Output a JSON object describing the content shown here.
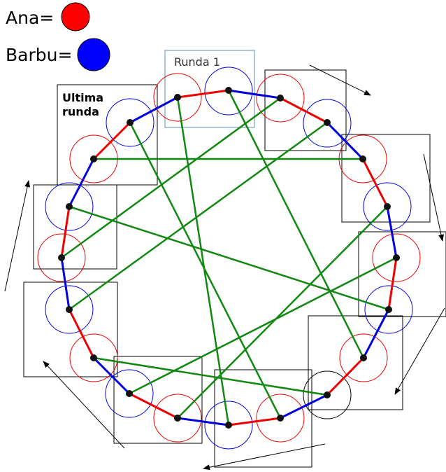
{
  "legend": {
    "ana_label": "Ana=",
    "barbu_label": "Barbu=",
    "ana_color": "#ff0000",
    "barbu_color": "#0000ff"
  },
  "labels": {
    "first_round": "Runda 1",
    "last_round_line1": "Ultima",
    "last_round_line2": "runda"
  },
  "colors": {
    "ana_link": "#ee0000",
    "barbu_link": "#0000dd",
    "chord": "#118811",
    "ana_circle": "#ee0000",
    "barbu_circle": "#0000dd",
    "node": "#111111",
    "box_first_round": "#5a8fb0",
    "box": "#000000"
  }
}
